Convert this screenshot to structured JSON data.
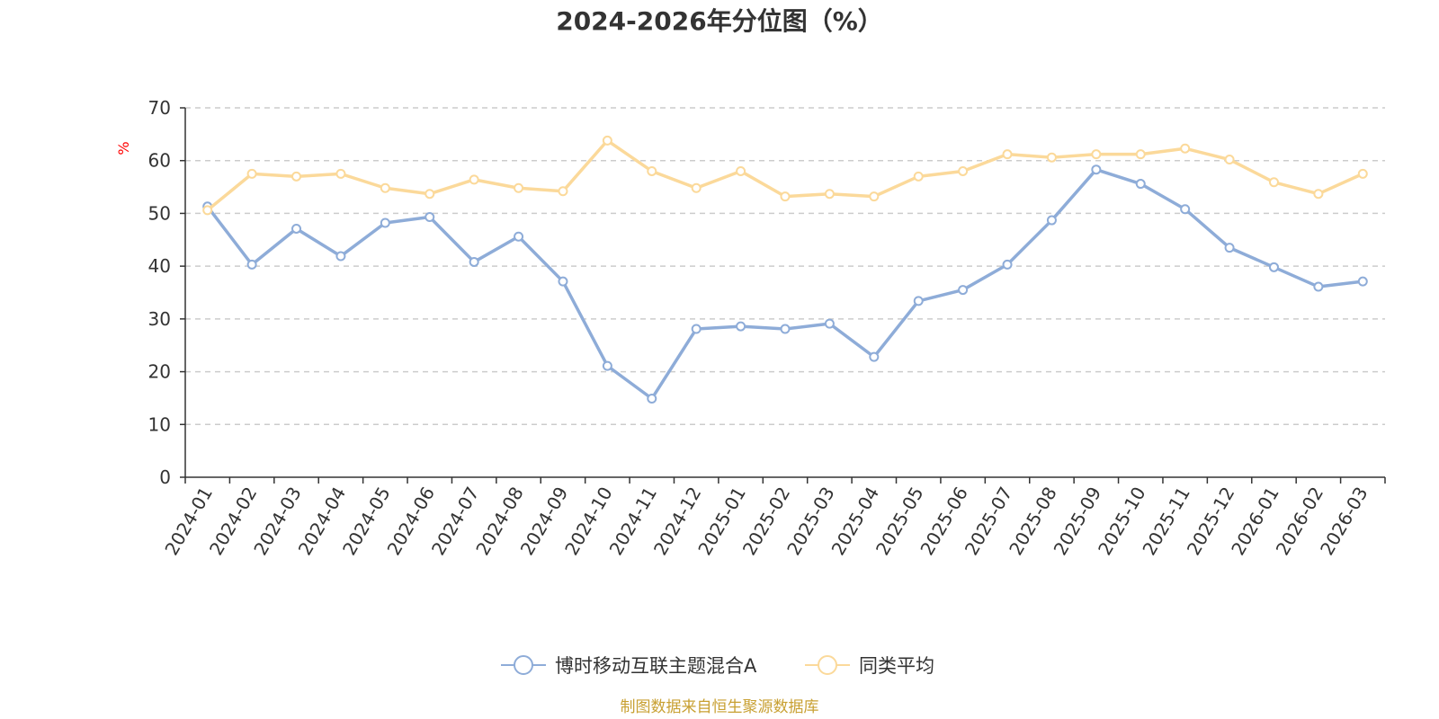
{
  "chart_data": {
    "type": "line",
    "title": "2024-2026年分位图（%）",
    "ylabel": "%",
    "xlabel": "",
    "ylim": [
      0,
      70
    ],
    "yticks": [
      0,
      10,
      20,
      30,
      40,
      50,
      60,
      70
    ],
    "grid": true,
    "legend_position": "bottom-center",
    "categories": [
      "2024-01",
      "2024-02",
      "2024-03",
      "2024-04",
      "2024-05",
      "2024-06",
      "2024-07",
      "2024-08",
      "2024-09",
      "2024-10",
      "2024-11",
      "2024-12",
      "2025-01",
      "2025-02",
      "2025-03",
      "2025-04",
      "2025-05",
      "2025-06",
      "2025-07",
      "2025-08",
      "2025-09",
      "2025-10",
      "2025-11",
      "2025-12",
      "2026-01",
      "2026-02",
      "2026-03"
    ],
    "series": [
      {
        "name": "博时移动互联主题混合A",
        "color": "#8eacd8",
        "values": [
          51.3,
          40.3,
          47.1,
          41.9,
          48.2,
          49.3,
          40.8,
          45.6,
          37.1,
          21.1,
          14.9,
          28.1,
          28.6,
          28.1,
          29.1,
          22.8,
          33.4,
          35.5,
          40.3,
          48.7,
          58.3,
          55.6,
          50.8,
          43.5,
          39.8,
          36.1,
          37.1
        ]
      },
      {
        "name": "同类平均",
        "color": "#fbd99a",
        "values": [
          50.6,
          57.5,
          57.0,
          57.5,
          54.8,
          53.7,
          56.4,
          54.8,
          54.2,
          63.8,
          58.0,
          54.8,
          58.0,
          53.2,
          53.7,
          53.2,
          57.0,
          58.0,
          61.2,
          60.6,
          61.2,
          61.2,
          62.3,
          60.2,
          55.9,
          53.7,
          57.5
        ]
      }
    ]
  },
  "source_note": "制图数据来自恒生聚源数据库"
}
